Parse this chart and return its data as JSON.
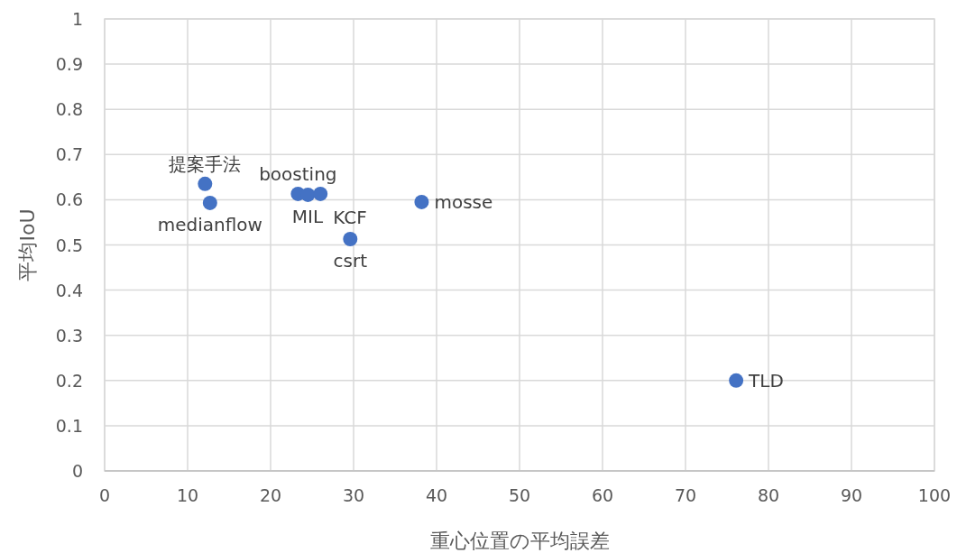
{
  "chart_data": {
    "type": "scatter",
    "xlabel": "重心位置の平均誤差",
    "ylabel": "平均IoU",
    "xlim": [
      0,
      100
    ],
    "ylim": [
      0,
      1
    ],
    "xticks": [
      0,
      10,
      20,
      30,
      40,
      50,
      60,
      70,
      80,
      90,
      100
    ],
    "yticks": [
      0,
      0.1,
      0.2,
      0.3,
      0.4,
      0.5,
      0.6,
      0.7,
      0.8,
      0.9,
      1
    ],
    "grid": true,
    "marker": "circle",
    "legend": false,
    "series": [
      {
        "name": "提案手法",
        "color": "#4472c4",
        "x": [
          12.1
        ],
        "values": [
          0.635
        ]
      },
      {
        "name": "medianflow",
        "color": "#4472c4",
        "x": [
          12.7
        ],
        "values": [
          0.593
        ]
      },
      {
        "name": "boosting",
        "color": "#4472c4",
        "x": [
          23.3
        ],
        "values": [
          0.613
        ]
      },
      {
        "name": "MIL",
        "color": "#4472c4",
        "x": [
          24.5
        ],
        "values": [
          0.611
        ]
      },
      {
        "name": "KCF",
        "color": "#4472c4",
        "x": [
          26.0
        ],
        "values": [
          0.613
        ]
      },
      {
        "name": "csrt",
        "color": "#4472c4",
        "x": [
          29.6
        ],
        "values": [
          0.513
        ]
      },
      {
        "name": "mosse",
        "color": "#4472c4",
        "x": [
          38.2
        ],
        "values": [
          0.595
        ]
      },
      {
        "name": "TLD",
        "color": "#4472c4",
        "x": [
          76.1
        ],
        "values": [
          0.2
        ]
      }
    ]
  }
}
